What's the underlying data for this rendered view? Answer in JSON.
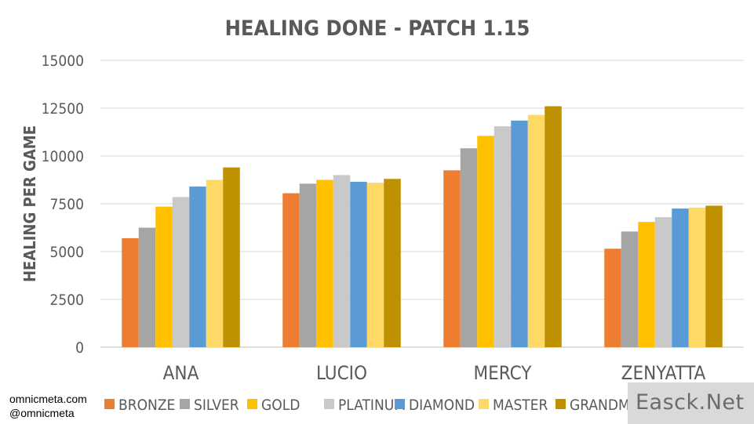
{
  "chart_data": {
    "type": "bar",
    "title": "HEALING DONE - PATCH 1.15",
    "ylabel": "HEALING PER GAME",
    "xlabel": "",
    "ylim": [
      0,
      15000
    ],
    "yticks": [
      0,
      2500,
      5000,
      7500,
      10000,
      12500,
      15000
    ],
    "yticklabels": [
      "0",
      "2500",
      "5000",
      "7500",
      "10000",
      "12500",
      "15000"
    ],
    "grid": true,
    "legend": "bottom",
    "categories": [
      "ANA",
      "LUCIO",
      "MERCY",
      "ZENYATTA"
    ],
    "series": [
      {
        "name": "BRONZE",
        "color": "#ed7d31",
        "values": [
          5700,
          8050,
          9250,
          5150
        ]
      },
      {
        "name": "SILVER",
        "color": "#a5a5a5",
        "values": [
          6250,
          8550,
          10400,
          6050
        ]
      },
      {
        "name": "GOLD",
        "color": "#ffc000",
        "values": [
          7350,
          8750,
          11050,
          6550
        ]
      },
      {
        "name": "PLATINUM",
        "color": "#c9c9c9",
        "values": [
          7850,
          9000,
          11550,
          6800
        ]
      },
      {
        "name": "DIAMOND",
        "color": "#5b9bd5",
        "values": [
          8400,
          8650,
          11850,
          7250
        ]
      },
      {
        "name": "MASTER",
        "color": "#ffd966",
        "values": [
          8750,
          8600,
          12150,
          7300
        ]
      },
      {
        "name": "GRANDMASTER",
        "color": "#bf9000",
        "values": [
          9400,
          8800,
          12600,
          7400
        ]
      }
    ]
  },
  "credits": {
    "line1": "omnicmeta.com",
    "line2": "@omnicmeta"
  },
  "watermark": {
    "text": "Easck.Net"
  }
}
